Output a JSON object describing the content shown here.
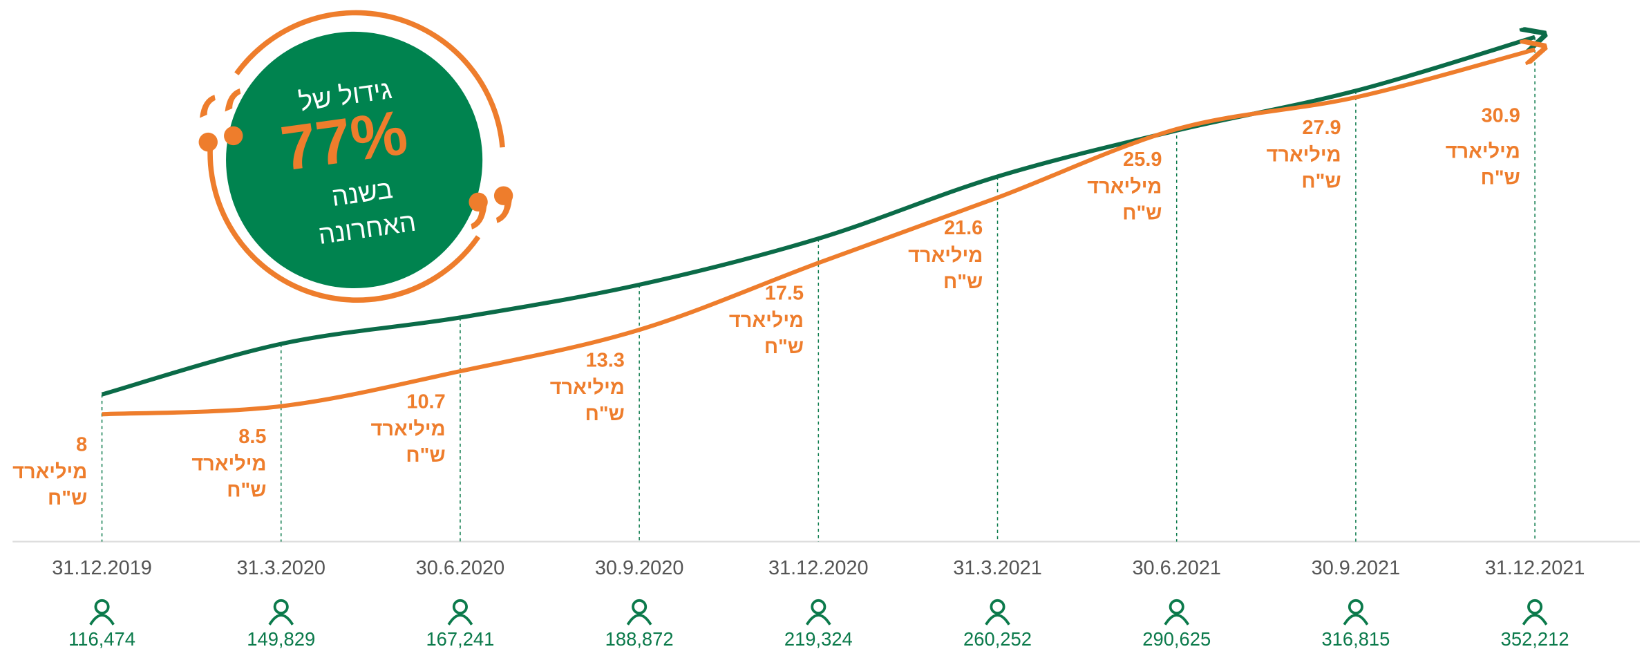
{
  "badge": {
    "line1": "גידול של",
    "growth": "77%",
    "line2": "בשנה",
    "line3": "האחרונה"
  },
  "chart_data": {
    "type": "line",
    "categories": [
      "31.12.2019",
      "31.3.2020",
      "30.6.2020",
      "30.9.2020",
      "31.12.2020",
      "31.3.2021",
      "30.6.2021",
      "30.9.2021",
      "31.12.2021"
    ],
    "unit_label": "מיליארד",
    "currency_label": "ש\"ח",
    "ylim": [
      0,
      34
    ],
    "y2lim": [
      19400,
      376600
    ],
    "series": [
      {
        "color": "#ee7d2c",
        "values": [
          8,
          8.5,
          10.7,
          13.3,
          17.5,
          21.6,
          25.9,
          27.9,
          30.9
        ]
      },
      {
        "color": "#0b6b48",
        "axis": "y2",
        "values": [
          116474,
          149829,
          167241,
          188872,
          219324,
          260252,
          290625,
          316815,
          352212
        ],
        "value_labels": [
          "116,474",
          "149,829",
          "167,241",
          "188,872",
          "219,324",
          "260,252",
          "290,625",
          "316,815",
          "352,212"
        ]
      }
    ]
  }
}
